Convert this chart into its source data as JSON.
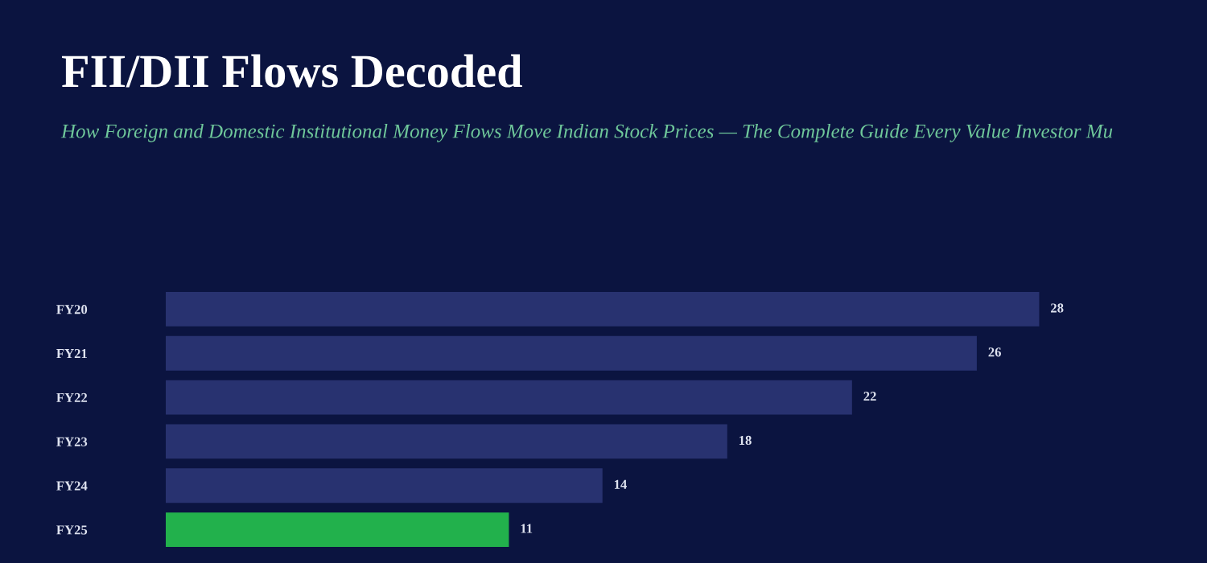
{
  "chart_data": {
    "type": "bar",
    "orientation": "horizontal",
    "title": "FII/DII Flows Decoded",
    "subtitle": "How Foreign and Domestic Institutional Money Flows Move Indian Stock Prices — The Complete Guide Every Value Investor Mu",
    "categories": [
      "FY20",
      "FY21",
      "FY22",
      "FY23",
      "FY24",
      "FY25"
    ],
    "values": [
      28,
      26,
      22,
      18,
      14,
      11
    ],
    "colors": [
      "#283270",
      "#283270",
      "#283270",
      "#283270",
      "#283270",
      "#22b14c"
    ],
    "data_labels": true,
    "grid": false,
    "legend": false
  }
}
